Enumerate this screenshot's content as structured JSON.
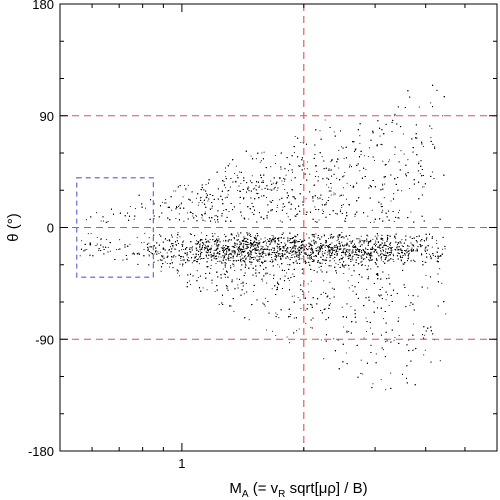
{
  "chart_data": {
    "type": "scatter",
    "xlabel_parts": {
      "main": "M",
      "main_sub": "A",
      "paren_open": " (= v",
      "paren_sub": "R",
      "rest": " sqrt[μρ] / B)"
    },
    "ylabel": "θ (°)",
    "x_scale": "log",
    "xlim": [
      0.5,
      6.0
    ],
    "ylim": [
      -180,
      180
    ],
    "x_tick_labels": [
      {
        "value": 1,
        "label": "1"
      }
    ],
    "y_tick_labels": [
      {
        "value": 180,
        "label": "180"
      },
      {
        "value": 90,
        "label": "90"
      },
      {
        "value": 0,
        "label": "0"
      },
      {
        "value": -90,
        "label": "-90"
      },
      {
        "value": -180,
        "label": "-180"
      }
    ],
    "reference_lines": {
      "horizontal": [
        90,
        0,
        -90
      ],
      "vertical": [
        2.0
      ],
      "color": "#d9534f",
      "style": "dashed"
    },
    "highlight_box": {
      "x_range": [
        0.55,
        0.85
      ],
      "y_range": [
        -40,
        40
      ],
      "color": "#5b5bd6",
      "style": "dashed"
    },
    "point_color": "#000000",
    "density_profile": [
      {
        "x": 0.56,
        "upper": 12,
        "lower": -30,
        "weight": 0.15
      },
      {
        "x": 0.65,
        "upper": 18,
        "lower": -25,
        "weight": 0.2
      },
      {
        "x": 0.75,
        "upper": 25,
        "lower": -28,
        "weight": 0.2
      },
      {
        "x": 0.85,
        "upper": 30,
        "lower": -40,
        "weight": 0.25
      },
      {
        "x": 0.95,
        "upper": 35,
        "lower": -45,
        "weight": 0.5
      },
      {
        "x": 1.1,
        "upper": 45,
        "lower": -60,
        "weight": 1.0
      },
      {
        "x": 1.4,
        "upper": 60,
        "lower": -80,
        "weight": 1.2
      },
      {
        "x": 1.8,
        "upper": 80,
        "lower": -100,
        "weight": 1.3
      },
      {
        "x": 2.3,
        "upper": 95,
        "lower": -120,
        "weight": 1.3
      },
      {
        "x": 3.0,
        "upper": 110,
        "lower": -145,
        "weight": 1.1
      },
      {
        "x": 3.8,
        "upper": 125,
        "lower": -155,
        "weight": 0.8
      },
      {
        "x": 4.5,
        "upper": 150,
        "lower": -120,
        "weight": 0.3
      }
    ]
  }
}
